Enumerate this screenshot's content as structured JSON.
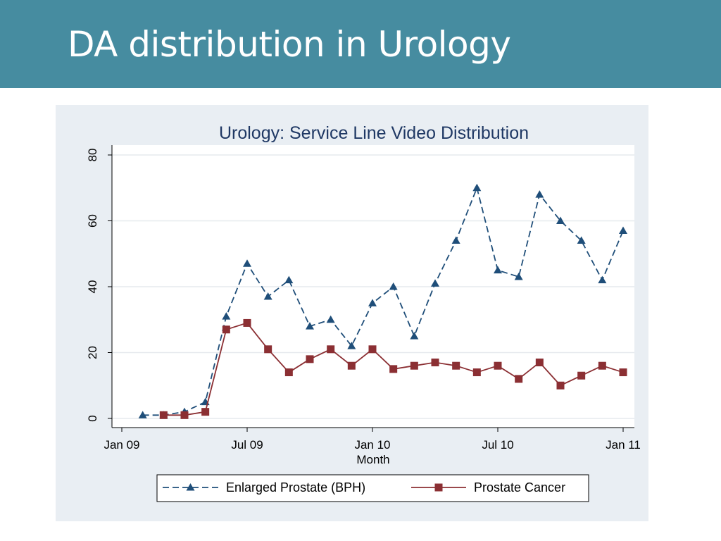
{
  "slide": {
    "title": "DA distribution in Urology",
    "header_color": "#468ca0"
  },
  "chart_data": {
    "type": "line",
    "title": "Urology: Service Line Video Distribution",
    "xlabel": "Month",
    "ylabel": "",
    "x_ticks": [
      "Jan 09",
      "Jul 09",
      "Jan 10",
      "Jul 10",
      "Jan 11"
    ],
    "y_ticks": [
      "0",
      "20",
      "40",
      "60",
      "80"
    ],
    "ylim": [
      0,
      80
    ],
    "xlim": [
      "2008-12",
      "2011-01"
    ],
    "grid": true,
    "legend_position": "bottom",
    "series": [
      {
        "name": "Enlarged Prostate (BPH)",
        "color": "#1f4e79",
        "line_style": "dashed",
        "marker": "triangle",
        "x": [
          "2009-02",
          "2009-03",
          "2009-04",
          "2009-05",
          "2009-06",
          "2009-07",
          "2009-08",
          "2009-09",
          "2009-10",
          "2009-11",
          "2009-12",
          "2010-01",
          "2010-02",
          "2010-03",
          "2010-04",
          "2010-05",
          "2010-06",
          "2010-07",
          "2010-08",
          "2010-09",
          "2010-10",
          "2010-11",
          "2010-12",
          "2011-01"
        ],
        "values": [
          1,
          1,
          2,
          5,
          31,
          47,
          37,
          42,
          28,
          30,
          22,
          35,
          40,
          25,
          41,
          54,
          70,
          45,
          43,
          68,
          60,
          54,
          42,
          57
        ]
      },
      {
        "name": "Prostate Cancer",
        "color": "#8b2f33",
        "line_style": "solid",
        "marker": "square",
        "x": [
          "2009-03",
          "2009-04",
          "2009-05",
          "2009-06",
          "2009-07",
          "2009-08",
          "2009-09",
          "2009-10",
          "2009-11",
          "2009-12",
          "2010-01",
          "2010-02",
          "2010-03",
          "2010-04",
          "2010-05",
          "2010-06",
          "2010-07",
          "2010-08",
          "2010-09",
          "2010-10",
          "2010-11",
          "2010-12",
          "2011-01"
        ],
        "values": [
          1,
          1,
          2,
          27,
          29,
          21,
          14,
          18,
          21,
          16,
          21,
          15,
          16,
          17,
          16,
          14,
          16,
          12,
          17,
          10,
          13,
          16,
          14
        ]
      }
    ]
  }
}
